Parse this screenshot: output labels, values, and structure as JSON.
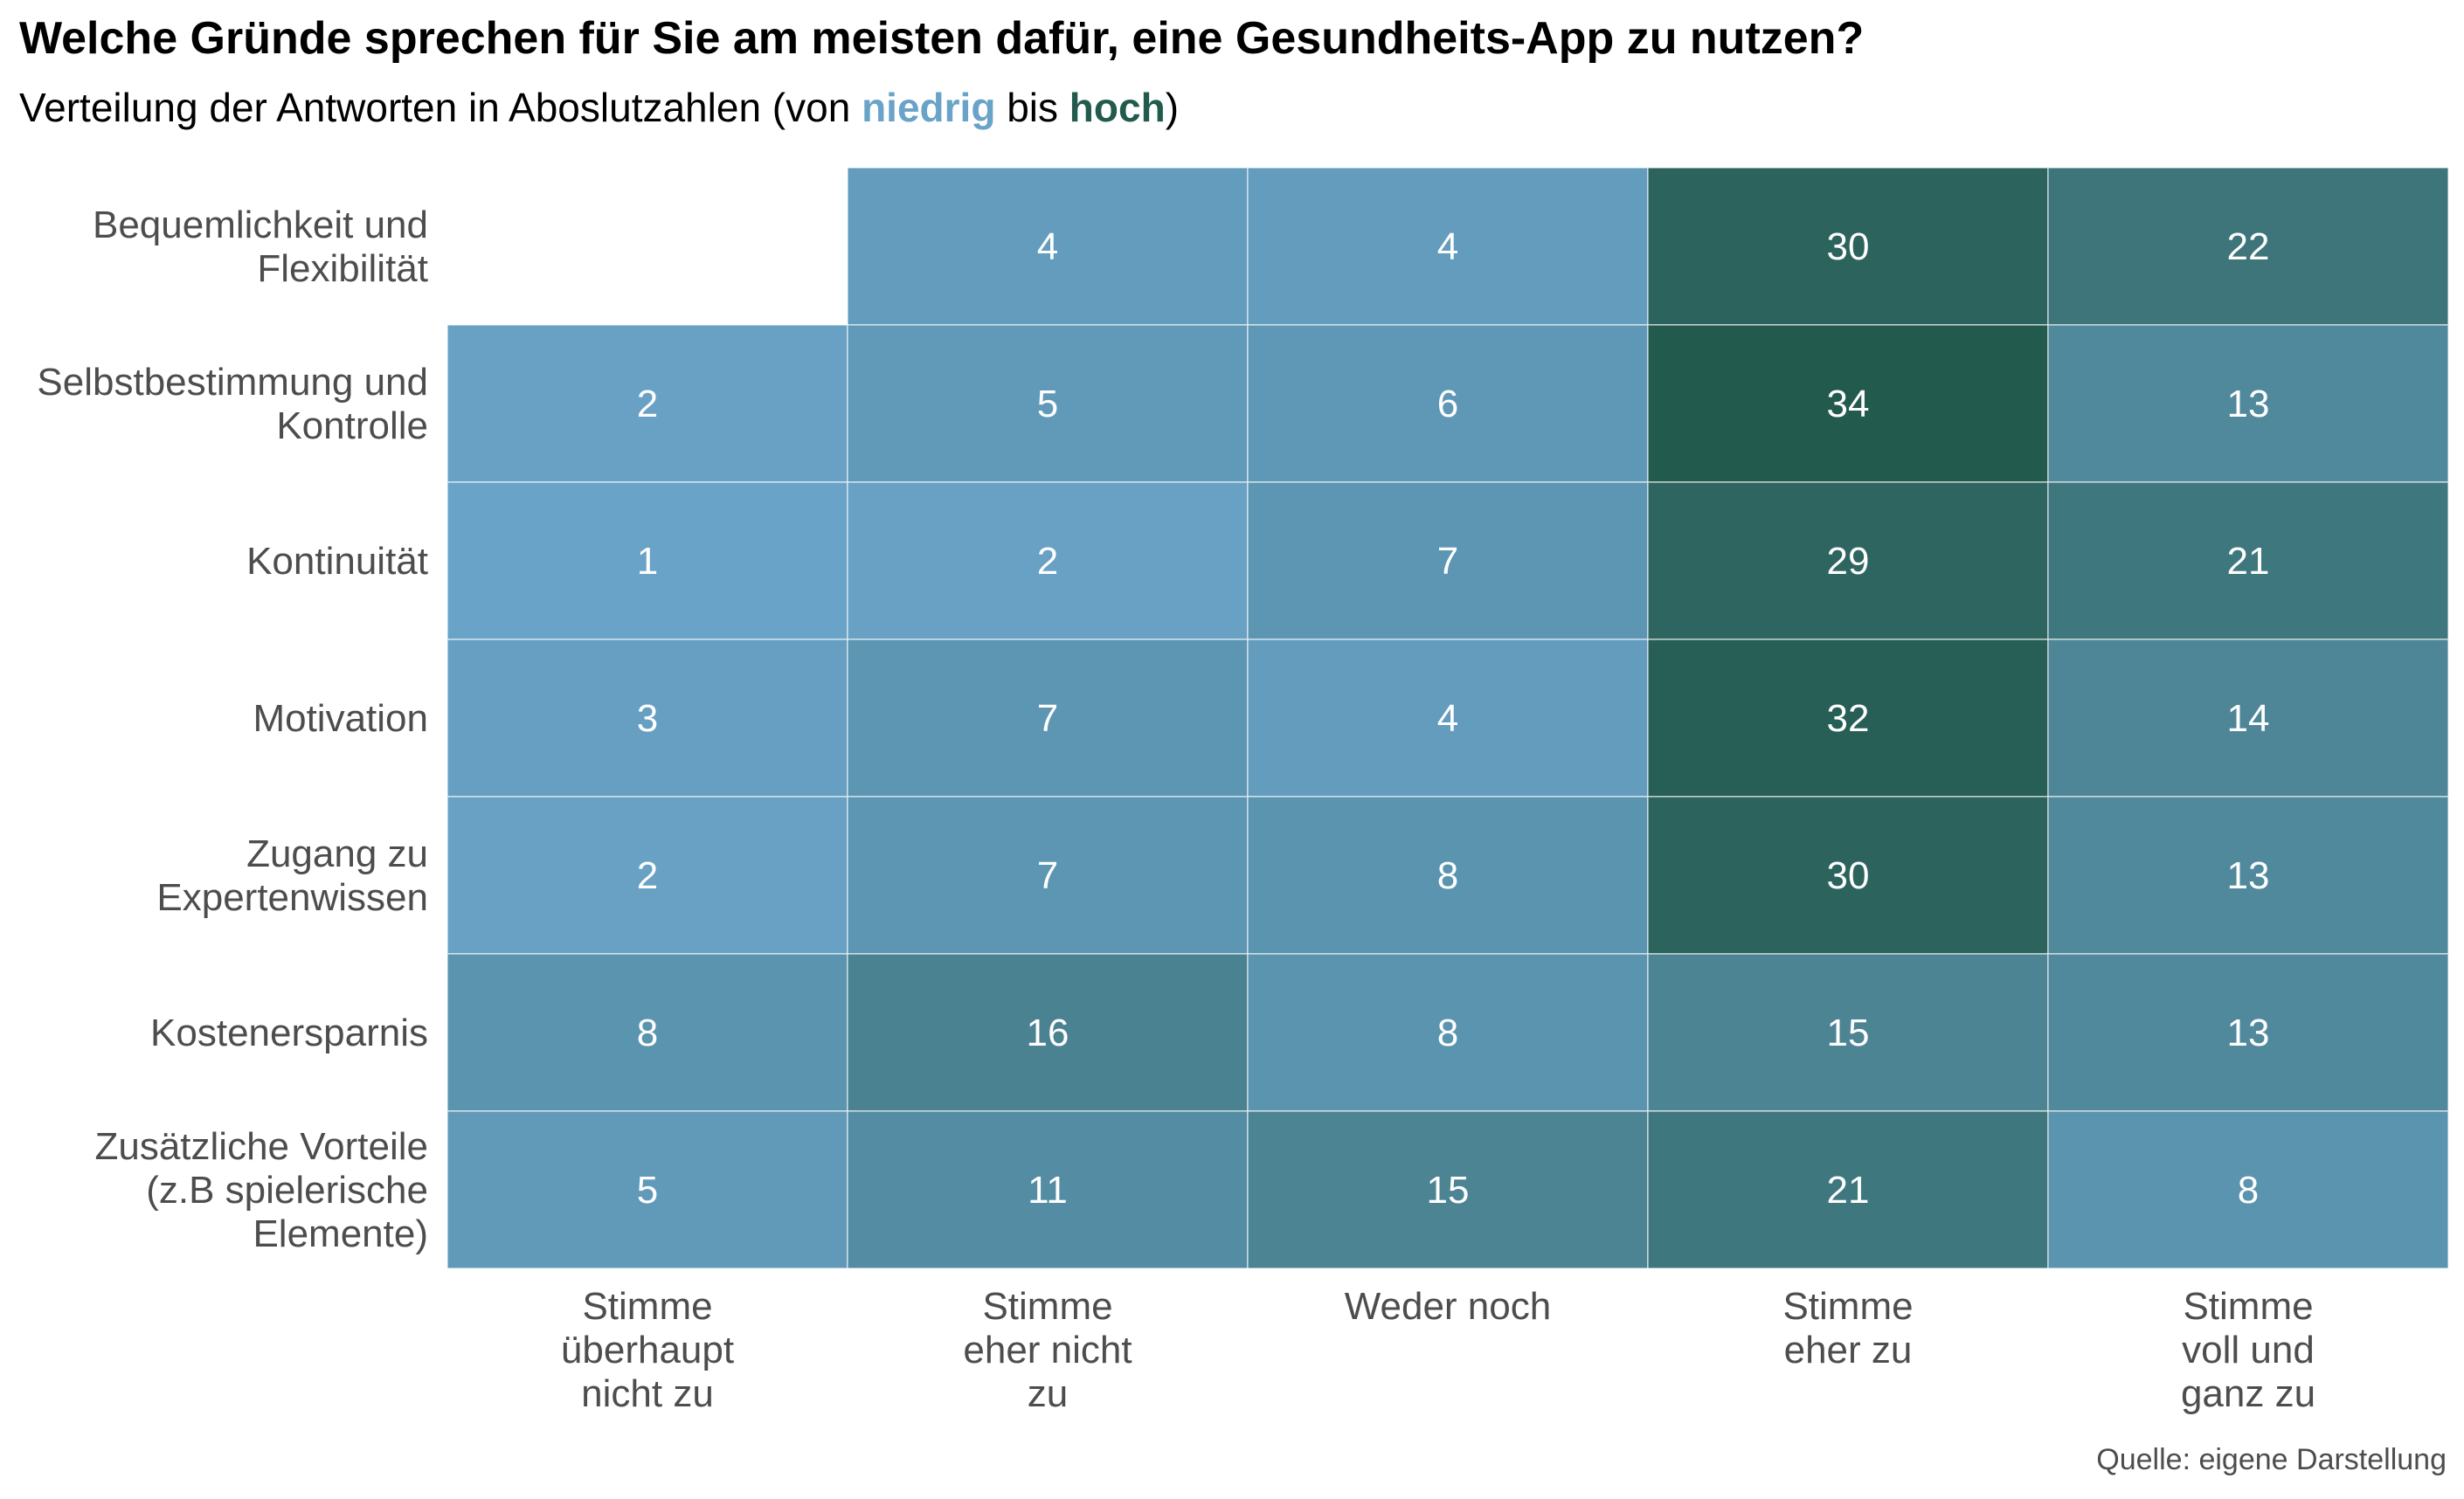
{
  "title": "Welche Gründe sprechen für Sie am meisten dafür, eine Gesundheits-App zu nutzen?",
  "subtitle": {
    "prefix": "Verteilung der Antworten in Aboslutzahlen (von ",
    "low": "niedrig",
    "middle": " bis ",
    "high": "hoch",
    "suffix": ")"
  },
  "source": "Quelle: eigene Darstellung",
  "colors": {
    "low": "#6aa3c8",
    "high": "#235a4e",
    "cell_text": "#ffffff",
    "axis_text": "#4d4d4d",
    "grid": "#ffffff"
  },
  "chart_data": {
    "type": "heatmap",
    "title": "Welche Gründe sprechen für Sie am meisten dafür, eine Gesundheits-App zu nutzen?",
    "x_categories": [
      [
        "Stimme",
        "überhaupt",
        "nicht zu"
      ],
      [
        "Stimme",
        "eher nicht",
        "zu"
      ],
      [
        "Weder noch"
      ],
      [
        "Stimme",
        "eher zu"
      ],
      [
        "Stimme",
        "voll und",
        "ganz zu"
      ]
    ],
    "y_categories": [
      [
        "Bequemlichkeit und",
        "Flexibilität"
      ],
      [
        "Selbstbestimmung und",
        "Kontrolle"
      ],
      [
        "Kontinuität"
      ],
      [
        "Motivation"
      ],
      [
        "Zugang zu",
        "Expertenwissen"
      ],
      [
        "Kostenersparnis"
      ],
      [
        "Zusätzliche Vorteile",
        "(z.B spielerische",
        "Elemente)"
      ]
    ],
    "values": [
      [
        null,
        4,
        4,
        30,
        22
      ],
      [
        2,
        5,
        6,
        34,
        13
      ],
      [
        1,
        2,
        7,
        29,
        21
      ],
      [
        3,
        7,
        4,
        32,
        14
      ],
      [
        2,
        7,
        8,
        30,
        13
      ],
      [
        8,
        16,
        8,
        15,
        13
      ],
      [
        5,
        11,
        15,
        21,
        8
      ]
    ],
    "color_range": [
      1,
      34
    ],
    "xlabel": "",
    "ylabel": "",
    "legend": "none"
  }
}
